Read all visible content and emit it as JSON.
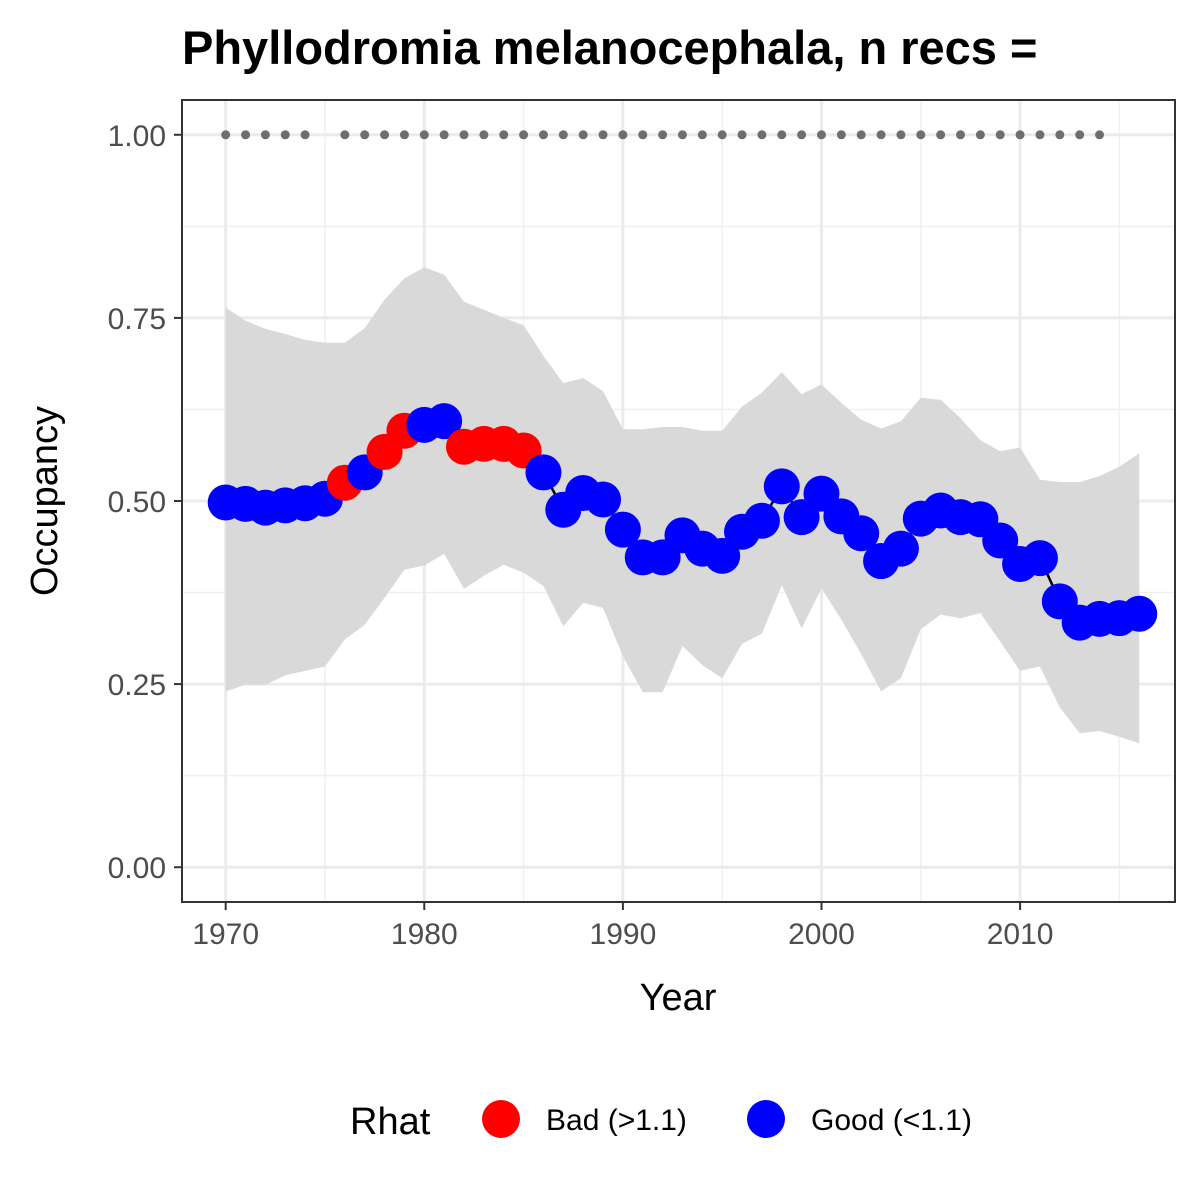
{
  "chart_data": {
    "type": "line",
    "title": "Phyllodromia melanocephala, n recs =",
    "xlabel": "Year",
    "ylabel": "Occupancy",
    "xlim": [
      1967.8,
      2017.8
    ],
    "ylim": [
      -0.0475,
      1.0475
    ],
    "x_ticks": [
      1970,
      1980,
      1990,
      2000,
      2010
    ],
    "x_tick_labels": [
      "1970",
      "1980",
      "1990",
      "2000",
      "2010"
    ],
    "y_ticks": [
      0,
      0.25,
      0.5,
      0.75,
      1.0
    ],
    "y_tick_labels": [
      "0.00",
      "0.25",
      "0.50",
      "0.75",
      "1.00"
    ],
    "grid": true,
    "legend": {
      "title": "Rhat",
      "position": "bottom",
      "items": [
        {
          "label": "Bad (>1.1)",
          "color": "#ff0000"
        },
        {
          "label": "Good (<1.1)",
          "color": "#0000ff"
        }
      ]
    },
    "colors": {
      "bad": "#ff0000",
      "good": "#0000ff",
      "ribbon": "#d9d9d9",
      "line": "#000000",
      "record_dots": "#6e6e6e"
    },
    "x": [
      1970,
      1971,
      1972,
      1973,
      1974,
      1975,
      1976,
      1977,
      1978,
      1979,
      1980,
      1981,
      1982,
      1983,
      1984,
      1985,
      1986,
      1987,
      1988,
      1989,
      1990,
      1991,
      1992,
      1993,
      1994,
      1995,
      1996,
      1997,
      1998,
      1999,
      2000,
      2001,
      2002,
      2003,
      2004,
      2005,
      2006,
      2007,
      2008,
      2009,
      2010,
      2011,
      2012,
      2013,
      2014,
      2015,
      2016
    ],
    "occupancy": [
      0.498,
      0.496,
      0.491,
      0.494,
      0.497,
      0.503,
      0.525,
      0.539,
      0.567,
      0.596,
      0.604,
      0.609,
      0.574,
      0.578,
      0.578,
      0.569,
      0.539,
      0.488,
      0.511,
      0.502,
      0.461,
      0.423,
      0.423,
      0.453,
      0.435,
      0.425,
      0.458,
      0.473,
      0.52,
      0.478,
      0.51,
      0.479,
      0.456,
      0.418,
      0.435,
      0.476,
      0.487,
      0.478,
      0.475,
      0.446,
      0.414,
      0.422,
      0.363,
      0.334,
      0.339,
      0.34,
      0.346
    ],
    "lower": [
      0.24,
      0.249,
      0.249,
      0.262,
      0.268,
      0.274,
      0.311,
      0.331,
      0.368,
      0.406,
      0.412,
      0.428,
      0.38,
      0.398,
      0.413,
      0.402,
      0.384,
      0.329,
      0.361,
      0.354,
      0.288,
      0.239,
      0.239,
      0.302,
      0.276,
      0.258,
      0.305,
      0.319,
      0.385,
      0.326,
      0.381,
      0.338,
      0.291,
      0.24,
      0.258,
      0.325,
      0.345,
      0.34,
      0.347,
      0.308,
      0.268,
      0.274,
      0.218,
      0.183,
      0.186,
      0.178,
      0.169
    ],
    "upper": [
      0.764,
      0.746,
      0.735,
      0.728,
      0.72,
      0.716,
      0.716,
      0.736,
      0.775,
      0.804,
      0.819,
      0.809,
      0.772,
      0.761,
      0.75,
      0.74,
      0.698,
      0.661,
      0.668,
      0.65,
      0.598,
      0.598,
      0.601,
      0.601,
      0.596,
      0.596,
      0.629,
      0.648,
      0.676,
      0.646,
      0.659,
      0.634,
      0.611,
      0.599,
      0.609,
      0.641,
      0.638,
      0.613,
      0.583,
      0.568,
      0.573,
      0.529,
      0.526,
      0.526,
      0.534,
      0.547,
      0.565
    ],
    "rhat": [
      "Good",
      "Good",
      "Good",
      "Good",
      "Good",
      "Good",
      "Bad",
      "Good",
      "Bad",
      "Bad",
      "Good",
      "Good",
      "Bad",
      "Bad",
      "Bad",
      "Bad",
      "Good",
      "Good",
      "Good",
      "Good",
      "Good",
      "Good",
      "Good",
      "Good",
      "Good",
      "Good",
      "Good",
      "Good",
      "Good",
      "Good",
      "Good",
      "Good",
      "Good",
      "Good",
      "Good",
      "Good",
      "Good",
      "Good",
      "Good",
      "Good",
      "Good",
      "Good",
      "Good",
      "Good",
      "Good",
      "Good",
      "Good"
    ],
    "record_years": [
      1970,
      1971,
      1972,
      1973,
      1974,
      1976,
      1977,
      1978,
      1979,
      1980,
      1981,
      1982,
      1983,
      1984,
      1985,
      1986,
      1987,
      1988,
      1989,
      1990,
      1991,
      1992,
      1993,
      1994,
      1995,
      1996,
      1997,
      1998,
      1999,
      2000,
      2001,
      2002,
      2003,
      2004,
      2005,
      2006,
      2007,
      2008,
      2009,
      2010,
      2011,
      2012,
      2013,
      2014
    ],
    "record_value": 1.0
  }
}
